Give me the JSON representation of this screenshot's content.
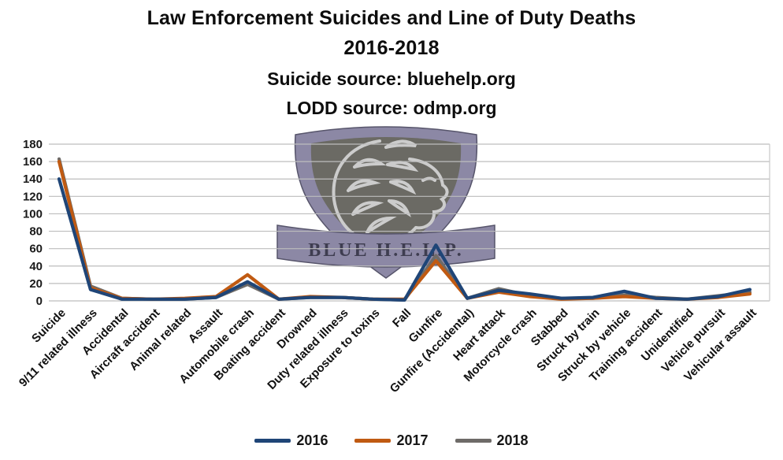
{
  "title": {
    "line1": "Law Enforcement Suicides and Line of Duty Deaths",
    "line2": "2016-2018",
    "line3": "Suicide source: bluehelp.org",
    "line4": "LODD source: odmp.org"
  },
  "watermark": {
    "text": "BLUE H.E.L.P."
  },
  "colors": {
    "series_2016": "#1F4577",
    "series_2017": "#C05A12",
    "series_2018": "#6E6B68",
    "gridline": "#BDBDBD",
    "plot_border": "#C9C9C9",
    "axis_text": "#1A1A1A",
    "title_text": "#0D0D0D",
    "logo_outer": "#8C88A5",
    "logo_inner": "#6B6A64",
    "logo_lion": "#D2D2D2",
    "logo_banner_text": "#3E3D50"
  },
  "chart_data": {
    "type": "line",
    "title": "Law Enforcement Suicides and Line of Duty Deaths 2016-2018",
    "subtitle": "Suicide source: bluehelp.org | LODD source: odmp.org",
    "categories": [
      "Suicide",
      "9/11 related illness",
      "Accidental",
      "Aircraft accident",
      "Animal related",
      "Assault",
      "Automobile crash",
      "Boating accident",
      "Drowned",
      "Duty related illness",
      "Exposure to toxins",
      "Fall",
      "Gunfire",
      "Gunfire (Accidental)",
      "Heart attack",
      "Motorcycle crash",
      "Stabbed",
      "Struck by train",
      "Struck by vehicle",
      "Training accident",
      "Unidentified",
      "Vehicle pursuit",
      "Vehicular assault"
    ],
    "series": [
      {
        "name": "2016",
        "color": "#1F4577",
        "values": [
          140,
          13,
          2,
          2,
          2,
          4,
          22,
          2,
          4,
          4,
          2,
          1,
          64,
          3,
          12,
          8,
          3,
          4,
          11,
          3,
          2,
          5,
          13
        ]
      },
      {
        "name": "2017",
        "color": "#C05A12",
        "values": [
          160,
          15,
          3,
          2,
          3,
          5,
          30,
          2,
          5,
          4,
          2,
          2,
          46,
          3,
          10,
          5,
          2,
          3,
          5,
          3,
          2,
          4,
          8
        ]
      },
      {
        "name": "2018",
        "color": "#6E6B68",
        "values": [
          163,
          17,
          3,
          2,
          2,
          4,
          19,
          2,
          4,
          4,
          2,
          1,
          52,
          3,
          14,
          6,
          3,
          3,
          7,
          4,
          2,
          6,
          10
        ]
      }
    ],
    "ylim": [
      0,
      180
    ],
    "ytick_step": 20,
    "yticks": [
      0,
      20,
      40,
      60,
      80,
      100,
      120,
      140,
      160,
      180
    ],
    "grid": true,
    "legend_position": "bottom",
    "xlabel": "",
    "ylabel": ""
  }
}
